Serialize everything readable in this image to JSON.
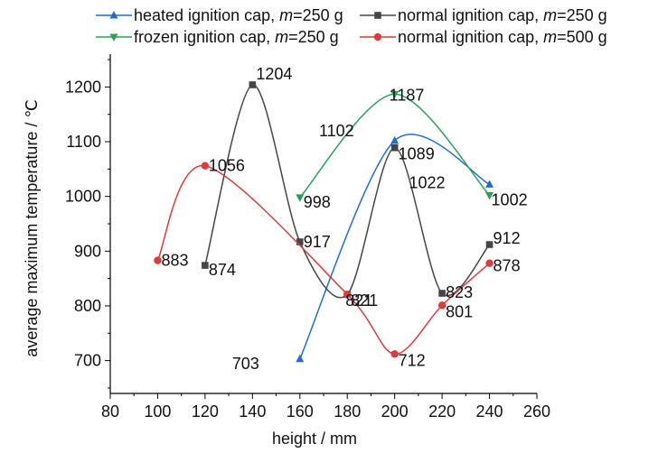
{
  "chart_data": {
    "type": "line",
    "xlabel": "height / mm",
    "ylabel": "average maximum temperature / ℃",
    "xlim": [
      80,
      260
    ],
    "ylim": [
      640,
      1260
    ],
    "x_ticks": [
      80,
      100,
      120,
      140,
      160,
      180,
      200,
      220,
      240,
      260
    ],
    "y_ticks": [
      700,
      800,
      900,
      1000,
      1100,
      1200
    ],
    "grid": false,
    "legend_position": "top",
    "series": [
      {
        "name": "heated ignition cap, m=250 g",
        "legend_prefix": "heated ignition cap, ",
        "legend_var": "m",
        "legend_suffix": "=250 g",
        "color": "#1f6fd0",
        "marker": "triangle-up",
        "x": [
          160,
          200,
          240
        ],
        "y": [
          703,
          1102,
          1022
        ],
        "labels": [
          "703",
          "1102",
          "1022"
        ]
      },
      {
        "name": "frozen ignition cap, m=250 g",
        "legend_prefix": "frozen ignition cap, ",
        "legend_var": "m",
        "legend_suffix": "=250 g",
        "color": "#2aa05a",
        "marker": "triangle-down",
        "x": [
          160,
          200,
          240
        ],
        "y": [
          998,
          1187,
          1002
        ],
        "labels": [
          "998",
          "1187",
          "1002"
        ]
      },
      {
        "name": "normal ignition cap, m=250 g",
        "legend_prefix": "normal ignition cap, ",
        "legend_var": "m",
        "legend_suffix": "=250 g",
        "color": "#454545",
        "marker": "square",
        "x": [
          120,
          140,
          160,
          180,
          200,
          220,
          240
        ],
        "y": [
          874,
          1204,
          917,
          821,
          1089,
          823,
          912
        ],
        "labels": [
          "874",
          "1204",
          "917",
          "821",
          "1089",
          "823",
          "912"
        ]
      },
      {
        "name": "normal ignition cap, m=500 g",
        "legend_prefix": "normal ignition cap, ",
        "legend_var": "m",
        "legend_suffix": "=500 g",
        "color": "#e03a3a",
        "marker": "circle",
        "x": [
          100,
          120,
          180,
          200,
          220,
          240
        ],
        "y": [
          883,
          1056,
          821,
          712,
          801,
          878
        ],
        "labels": [
          "883",
          "1056",
          "821",
          "712",
          "801",
          "878"
        ]
      }
    ]
  }
}
